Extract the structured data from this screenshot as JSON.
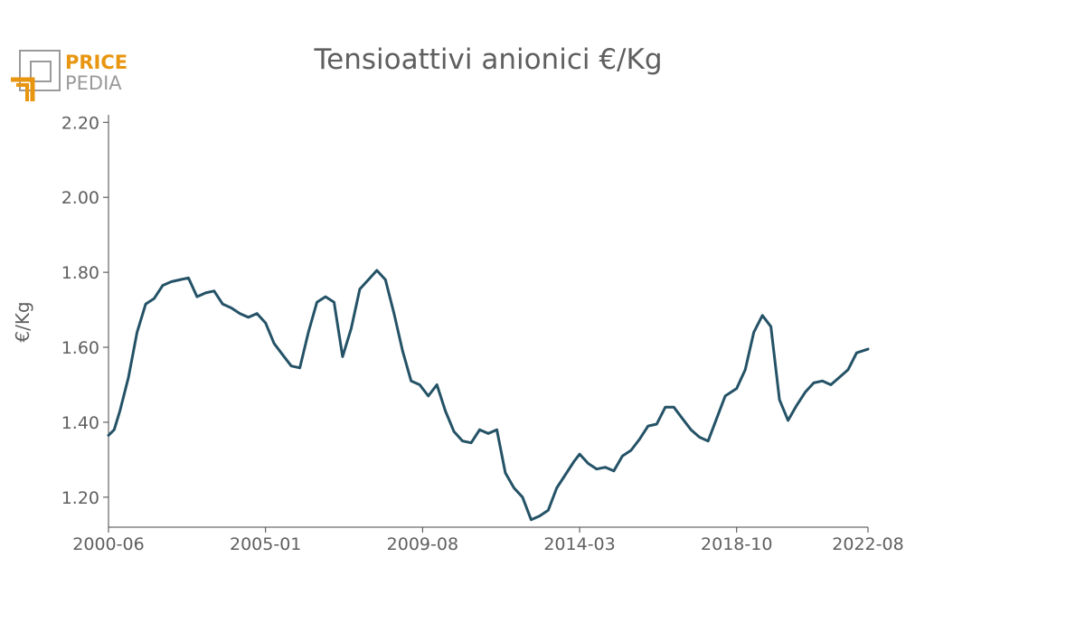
{
  "logo": {
    "line1": "PRICE",
    "line2": "PEDIA",
    "accent_color": "#e8960f",
    "gray_color": "#9a9a9a"
  },
  "chart_data": {
    "type": "line",
    "title": "Tensioattivi anionici €/Kg",
    "xlabel": "",
    "ylabel": "€/Kg",
    "line_color": "#245266",
    "grid": false,
    "ylim": [
      1.12,
      2.22
    ],
    "y_ticks": [
      "1.20",
      "1.40",
      "1.60",
      "1.80",
      "2.00",
      "2.20"
    ],
    "x_ticks": [
      "2000-06",
      "2005-01",
      "2009-08",
      "2014-03",
      "2018-10",
      "2022-08"
    ],
    "x_start": "2000-06",
    "x_end": "2022-08",
    "series": [
      {
        "points": [
          [
            "2000-06",
            1.365
          ],
          [
            "2000-08",
            1.38
          ],
          [
            "2000-10",
            1.43
          ],
          [
            "2001-01",
            1.52
          ],
          [
            "2001-04",
            1.64
          ],
          [
            "2001-07",
            1.715
          ],
          [
            "2001-10",
            1.73
          ],
          [
            "2002-01",
            1.765
          ],
          [
            "2002-04",
            1.775
          ],
          [
            "2002-07",
            1.78
          ],
          [
            "2002-10",
            1.785
          ],
          [
            "2003-01",
            1.735
          ],
          [
            "2003-04",
            1.745
          ],
          [
            "2003-07",
            1.75
          ],
          [
            "2003-10",
            1.715
          ],
          [
            "2004-01",
            1.705
          ],
          [
            "2004-04",
            1.69
          ],
          [
            "2004-07",
            1.68
          ],
          [
            "2004-10",
            1.69
          ],
          [
            "2005-01",
            1.665
          ],
          [
            "2005-04",
            1.61
          ],
          [
            "2005-07",
            1.58
          ],
          [
            "2005-10",
            1.55
          ],
          [
            "2006-01",
            1.545
          ],
          [
            "2006-04",
            1.64
          ],
          [
            "2006-07",
            1.72
          ],
          [
            "2006-10",
            1.735
          ],
          [
            "2007-01",
            1.72
          ],
          [
            "2007-04",
            1.575
          ],
          [
            "2007-07",
            1.65
          ],
          [
            "2007-10",
            1.755
          ],
          [
            "2008-01",
            1.78
          ],
          [
            "2008-04",
            1.805
          ],
          [
            "2008-07",
            1.78
          ],
          [
            "2008-10",
            1.69
          ],
          [
            "2009-01",
            1.59
          ],
          [
            "2009-04",
            1.51
          ],
          [
            "2009-07",
            1.5
          ],
          [
            "2009-10",
            1.47
          ],
          [
            "2010-01",
            1.5
          ],
          [
            "2010-04",
            1.43
          ],
          [
            "2010-07",
            1.375
          ],
          [
            "2010-10",
            1.35
          ],
          [
            "2011-01",
            1.345
          ],
          [
            "2011-04",
            1.38
          ],
          [
            "2011-07",
            1.37
          ],
          [
            "2011-10",
            1.38
          ],
          [
            "2012-01",
            1.265
          ],
          [
            "2012-04",
            1.225
          ],
          [
            "2012-07",
            1.2
          ],
          [
            "2012-10",
            1.14
          ],
          [
            "2013-01",
            1.15
          ],
          [
            "2013-04",
            1.165
          ],
          [
            "2013-07",
            1.225
          ],
          [
            "2013-10",
            1.26
          ],
          [
            "2014-01",
            1.295
          ],
          [
            "2014-03",
            1.315
          ],
          [
            "2014-06",
            1.29
          ],
          [
            "2014-09",
            1.275
          ],
          [
            "2014-12",
            1.28
          ],
          [
            "2015-03",
            1.27
          ],
          [
            "2015-06",
            1.31
          ],
          [
            "2015-09",
            1.325
          ],
          [
            "2015-12",
            1.355
          ],
          [
            "2016-03",
            1.39
          ],
          [
            "2016-06",
            1.395
          ],
          [
            "2016-09",
            1.44
          ],
          [
            "2016-12",
            1.44
          ],
          [
            "2017-03",
            1.41
          ],
          [
            "2017-06",
            1.38
          ],
          [
            "2017-09",
            1.36
          ],
          [
            "2017-12",
            1.35
          ],
          [
            "2018-03",
            1.41
          ],
          [
            "2018-06",
            1.47
          ],
          [
            "2018-10",
            1.49
          ],
          [
            "2019-01",
            1.54
          ],
          [
            "2019-04",
            1.64
          ],
          [
            "2019-07",
            1.685
          ],
          [
            "2019-10",
            1.655
          ],
          [
            "2020-01",
            1.46
          ],
          [
            "2020-04",
            1.405
          ],
          [
            "2020-07",
            1.445
          ],
          [
            "2020-10",
            1.48
          ],
          [
            "2021-01",
            1.505
          ],
          [
            "2021-04",
            1.51
          ],
          [
            "2021-07",
            1.5
          ],
          [
            "2021-10",
            1.52
          ],
          [
            "2022-01",
            1.54
          ],
          [
            "2022-04",
            1.585
          ],
          [
            "2022-08",
            1.595
          ]
        ]
      }
    ]
  }
}
